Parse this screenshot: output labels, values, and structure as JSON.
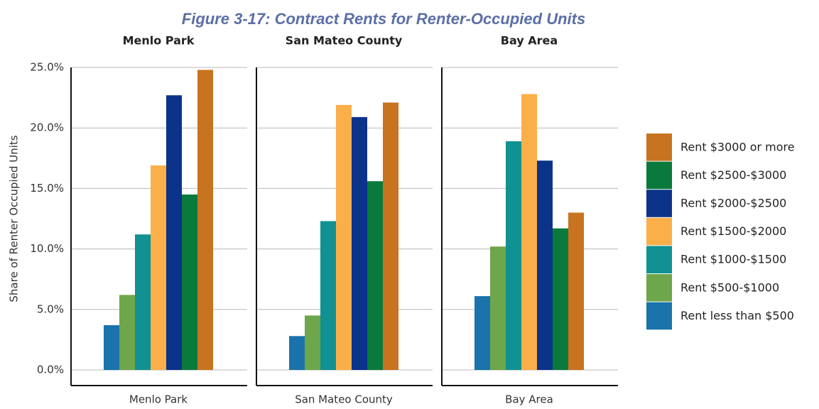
{
  "chart_data": {
    "type": "bar",
    "title": "Figure 3-17: Contract Rents for Renter-Occupied Units",
    "y_label": "Share of Renter Occupied Units",
    "categories": [
      "Menlo Park",
      "San Mateo County",
      "Bay Area"
    ],
    "series": [
      {
        "name": "Rent less than $500",
        "color": "#1a73aa",
        "values": [
          3.7,
          2.8,
          6.1
        ]
      },
      {
        "name": "Rent $500-$1000",
        "color": "#6ea64b",
        "values": [
          6.2,
          4.5,
          10.2
        ]
      },
      {
        "name": "Rent $1000-$1500",
        "color": "#119191",
        "values": [
          11.2,
          12.3,
          18.9
        ]
      },
      {
        "name": "Rent $1500-$2000",
        "color": "#fbaf48",
        "values": [
          16.9,
          21.9,
          22.8
        ]
      },
      {
        "name": "Rent $2000-$2500",
        "color": "#0b3389",
        "values": [
          22.7,
          20.9,
          17.3
        ]
      },
      {
        "name": "Rent $2500-$3000",
        "color": "#0a7a3c",
        "values": [
          14.5,
          15.6,
          11.7
        ]
      },
      {
        "name": "Rent $3000 or more",
        "color": "#c8731f",
        "values": [
          24.8,
          22.1,
          13.0
        ]
      }
    ],
    "ylim": [
      0,
      25
    ],
    "yticks": [
      {
        "value": 0,
        "label": "0.0%"
      },
      {
        "value": 5,
        "label": "5.0%"
      },
      {
        "value": 10,
        "label": "10.0%"
      },
      {
        "value": 15,
        "label": "15.0%"
      },
      {
        "value": 20,
        "label": "20.0%"
      },
      {
        "value": 25,
        "label": "25.0%"
      }
    ],
    "grid": true,
    "legend": "right"
  }
}
